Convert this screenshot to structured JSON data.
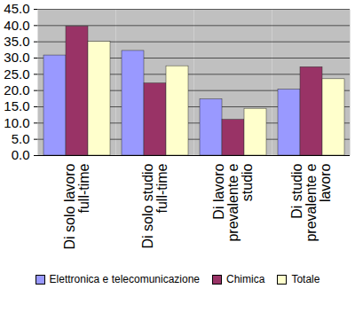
{
  "chart_data": {
    "type": "bar",
    "categories": [
      "Di solo lavoro full-time",
      "Di solo studio full-time",
      "Di lavoro prevalente e studio",
      "Di studio prevalente e lavoro"
    ],
    "series": [
      {
        "name": "Elettronica e telecomunicazione",
        "color": "#9999ff",
        "values": [
          30.8,
          32.2,
          17.3,
          20.3
        ]
      },
      {
        "name": "Chimica",
        "color": "#993366",
        "values": [
          39.7,
          22.2,
          11.0,
          27.2
        ]
      },
      {
        "name": "Totale",
        "color": "#ffffcc",
        "values": [
          35.0,
          27.5,
          14.4,
          23.5
        ]
      }
    ],
    "ylim": [
      0,
      45
    ],
    "yticks": [
      {
        "value": 0,
        "label": "0.0"
      },
      {
        "value": 5,
        "label": "5.0"
      },
      {
        "value": 10,
        "label": "10.0"
      },
      {
        "value": 15,
        "label": "15.0"
      },
      {
        "value": 20,
        "label": "20.0"
      },
      {
        "value": 25,
        "label": "25.0"
      },
      {
        "value": 30,
        "label": "30.0"
      },
      {
        "value": 35,
        "label": "35.0"
      },
      {
        "value": 40,
        "label": "40.0"
      },
      {
        "value": 45,
        "label": "45.0"
      }
    ],
    "grid": true,
    "legend": "bottom"
  }
}
